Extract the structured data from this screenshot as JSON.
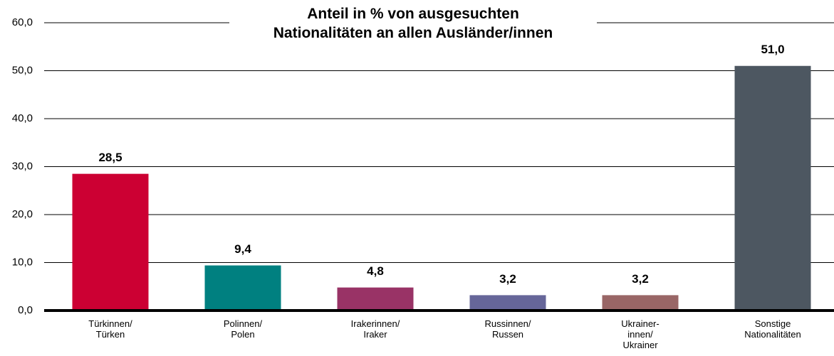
{
  "chart_data": {
    "type": "bar",
    "title": "Anteil in % von ausgesuchten\nNationalitäten an allen Ausländer/innen",
    "categories": [
      "Türkinnen/\nTürken",
      "Polinnen/\nPolen",
      "Irakerinnen/\nIraker",
      "Russinnen/\nRussen",
      "Ukrainer-\ninnen/\nUkrainer",
      "Sonstige\nNationalitäten"
    ],
    "values": [
      28.5,
      9.4,
      4.8,
      3.2,
      3.2,
      51.0
    ],
    "value_labels": [
      "28,5",
      "9,4",
      "4,8",
      "3,2",
      "3,2",
      "51,0"
    ],
    "colors": [
      "#cc0033",
      "#008080",
      "#993366",
      "#666699",
      "#996666",
      "#4d5761"
    ],
    "ylim": [
      0,
      60
    ],
    "yticks": [
      {
        "value": 0,
        "label": "0,0"
      },
      {
        "value": 10,
        "label": "10,0"
      },
      {
        "value": 20,
        "label": "20,0"
      },
      {
        "value": 30,
        "label": "30,0"
      },
      {
        "value": 40,
        "label": "40,0"
      },
      {
        "value": 50,
        "label": "50,0"
      },
      {
        "value": 60,
        "label": "60,0"
      }
    ],
    "grid": true
  }
}
